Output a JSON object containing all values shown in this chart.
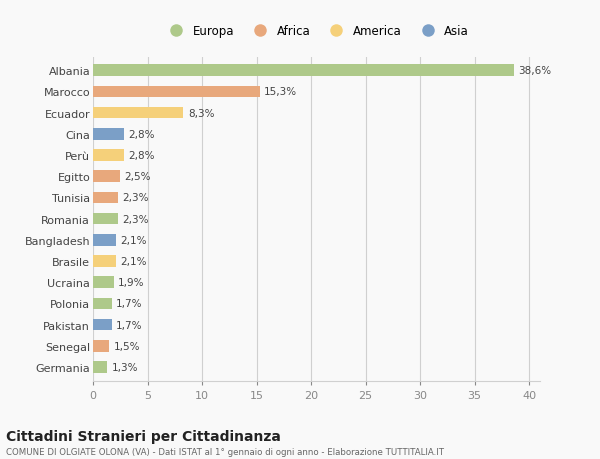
{
  "countries": [
    "Albania",
    "Marocco",
    "Ecuador",
    "Cina",
    "Perù",
    "Egitto",
    "Tunisia",
    "Romania",
    "Bangladesh",
    "Brasile",
    "Ucraina",
    "Polonia",
    "Pakistan",
    "Senegal",
    "Germania"
  ],
  "values": [
    38.6,
    15.3,
    8.3,
    2.8,
    2.8,
    2.5,
    2.3,
    2.3,
    2.1,
    2.1,
    1.9,
    1.7,
    1.7,
    1.5,
    1.3
  ],
  "colors": [
    "#aec98a",
    "#e8a87c",
    "#f5d07a",
    "#7b9fc7",
    "#f5d07a",
    "#e8a87c",
    "#e8a87c",
    "#aec98a",
    "#7b9fc7",
    "#f5d07a",
    "#aec98a",
    "#aec98a",
    "#7b9fc7",
    "#e8a87c",
    "#aec98a"
  ],
  "legend_labels": [
    "Europa",
    "Africa",
    "America",
    "Asia"
  ],
  "legend_colors": [
    "#aec98a",
    "#e8a87c",
    "#f5d07a",
    "#7b9fc7"
  ],
  "title": "Cittadini Stranieri per Cittadinanza",
  "subtitle": "COMUNE DI OLGIATE OLONA (VA) - Dati ISTAT al 1° gennaio di ogni anno - Elaborazione TUTTITALIA.IT",
  "xlim": [
    0,
    41
  ],
  "background_color": "#f9f9f9",
  "grid_color": "#d0d0d0"
}
